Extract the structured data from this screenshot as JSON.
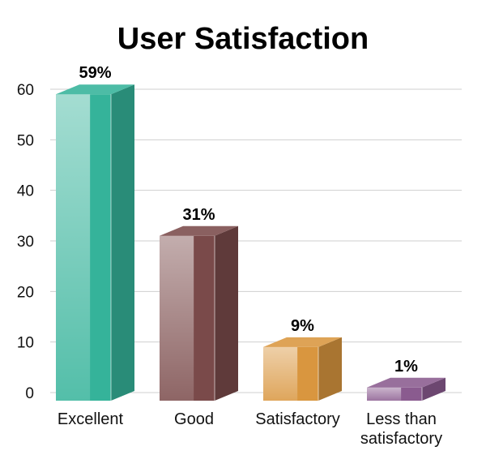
{
  "chart_data": {
    "type": "bar",
    "title": "User Satisfaction",
    "xlabel": "",
    "ylabel": "",
    "ylim": [
      0,
      60
    ],
    "yticks": [
      0,
      10,
      20,
      30,
      40,
      50,
      60
    ],
    "grid": true,
    "categories": [
      [
        "Excellent"
      ],
      [
        "Good"
      ],
      [
        "Satisfactory"
      ],
      [
        "Less than",
        "satisfactory"
      ]
    ],
    "values": [
      59,
      31,
      9,
      1
    ],
    "data_labels": [
      "59%",
      "31%",
      "9%",
      "1%"
    ],
    "colors": [
      "#35b39a",
      "#7a4a4a",
      "#d9963f",
      "#8a5b8f"
    ]
  }
}
